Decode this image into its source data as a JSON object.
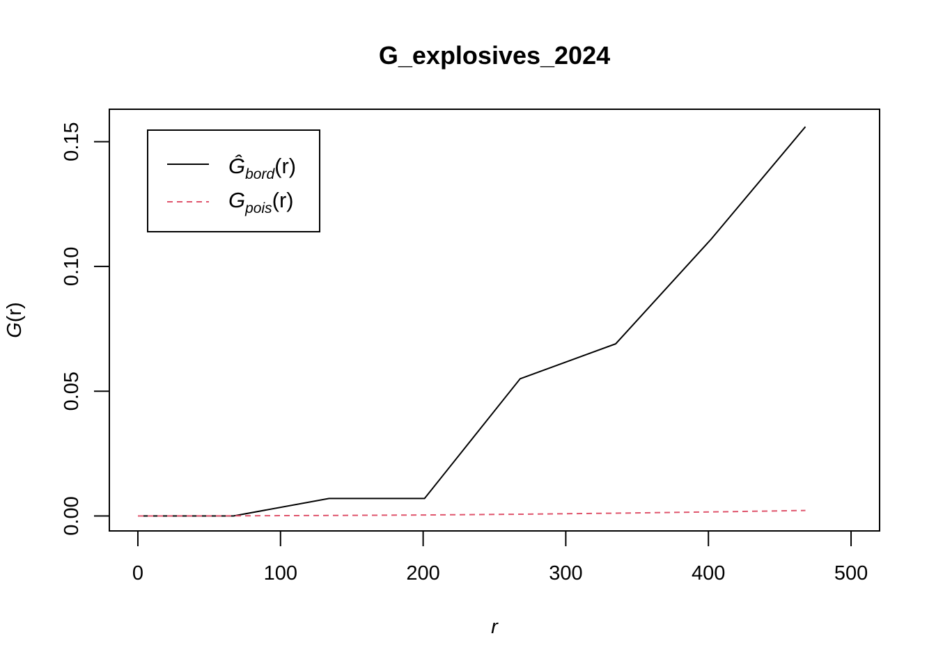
{
  "chart_data": {
    "type": "line",
    "title": "G_explosives_2024",
    "xlabel": "r",
    "ylabel": {
      "main": "G",
      "arg": "(r)"
    },
    "xlim": [
      -20,
      520
    ],
    "ylim": [
      -0.006,
      0.163
    ],
    "x_ticks": [
      0,
      100,
      200,
      300,
      400,
      500
    ],
    "x_tick_labels": [
      "0",
      "100",
      "200",
      "300",
      "400",
      "500"
    ],
    "y_ticks": [
      0,
      0.05,
      0.1,
      0.15
    ],
    "y_tick_labels": [
      "0.00",
      "0.05",
      "0.10",
      "0.15"
    ],
    "grid": false,
    "legend_position": "top-left",
    "series": [
      {
        "key": "bord",
        "legend": {
          "main": "Ĝ",
          "sub": "bord",
          "arg": "(r)"
        },
        "color": "#000000",
        "dash": "solid",
        "x": [
          0,
          67,
          134,
          201,
          268,
          335,
          402,
          468
        ],
        "y": [
          0,
          0,
          0.007,
          0.007,
          0.055,
          0.069,
          0.111,
          0.156
        ]
      },
      {
        "key": "pois",
        "legend": {
          "main": "G",
          "sub": "pois",
          "arg": "(r)"
        },
        "color": "#DF536B",
        "dash": "dashed",
        "x": [
          0,
          67,
          134,
          201,
          268,
          335,
          402,
          468
        ],
        "y": [
          0,
          4e-05,
          0.00018,
          0.0004,
          0.0007,
          0.0011,
          0.0016,
          0.0022
        ]
      }
    ]
  }
}
